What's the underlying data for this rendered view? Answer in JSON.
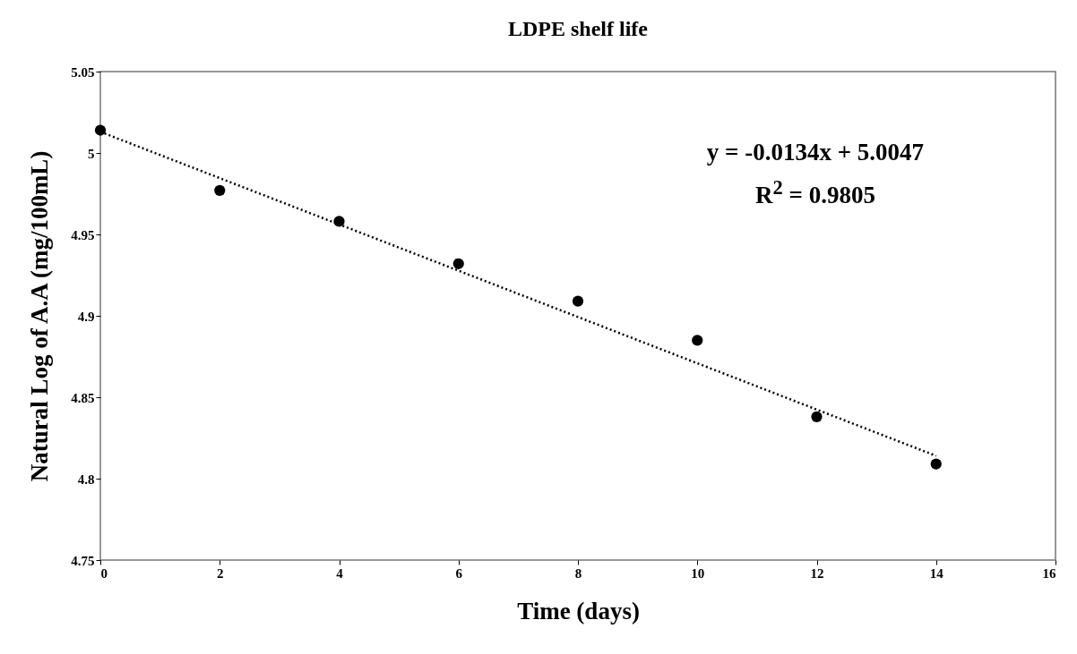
{
  "chart_data": {
    "type": "scatter",
    "title": "LDPE shelf life",
    "xlabel": "Time (days)",
    "ylabel": "Natural Log of A.A (mg/100mL)",
    "x": [
      0,
      2,
      4,
      6,
      8,
      10,
      12,
      14
    ],
    "series": [
      {
        "color": "#000000",
        "marker": "circle",
        "values": [
          5.014,
          4.977,
          4.958,
          4.932,
          4.909,
          4.885,
          4.838,
          4.809
        ]
      },
      {
        "type": "line",
        "color": "#000000",
        "line_style": "dotted",
        "marker": "none",
        "x": [
          0,
          14
        ],
        "values": [
          5.013,
          4.814
        ]
      }
    ],
    "annotations": [
      "y = -0.0134x + 5.0047",
      "R$^{2}$ = 0.9805"
    ],
    "xlim": [
      0,
      16
    ],
    "xticks": [
      0,
      2,
      4,
      6,
      8,
      10,
      12,
      14,
      16
    ],
    "ylim": [
      4.75,
      5.05
    ],
    "yticks": [
      4.75,
      4.8,
      4.85,
      4.9,
      4.95,
      5,
      5.05
    ],
    "grid": false
  }
}
